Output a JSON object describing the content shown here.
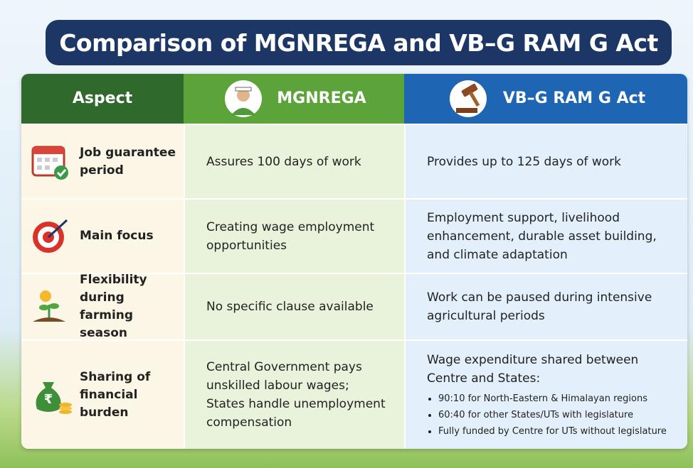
{
  "title": "Comparison of MGNREGA and VB–G RAM G Act",
  "table": {
    "header": [
      "Aspect",
      "MGNREGA",
      "VB–G RAM G Act"
    ],
    "rows": [
      {
        "aspect": "Job guarantee period",
        "mgnrega": "Assures 100 days of work",
        "vbg": "Provides up to 125 days of work"
      },
      {
        "aspect": "Main focus",
        "mgnrega": "Creating wage employment opportunities",
        "vbg": "Employment support, livelihood enhancement, durable asset building, and climate adaptation"
      },
      {
        "aspect": "Flexibility during farming season",
        "mgnrega": "No specific clause available",
        "vbg": "Work can be paused during intensive agricultural periods"
      },
      {
        "aspect": "Sharing of financial burden",
        "mgnrega": "Central Government pays unskilled labour wages; States handle unemployment compensation",
        "vbg": "Wage expenditure shared between Centre and States:",
        "vbg_points": [
          "90:10 for North-Eastern & Himalayan regions",
          "60:40 for other States/UTs with legislature",
          "Fully funded by Centre for UTs without legislature"
        ]
      }
    ]
  }
}
